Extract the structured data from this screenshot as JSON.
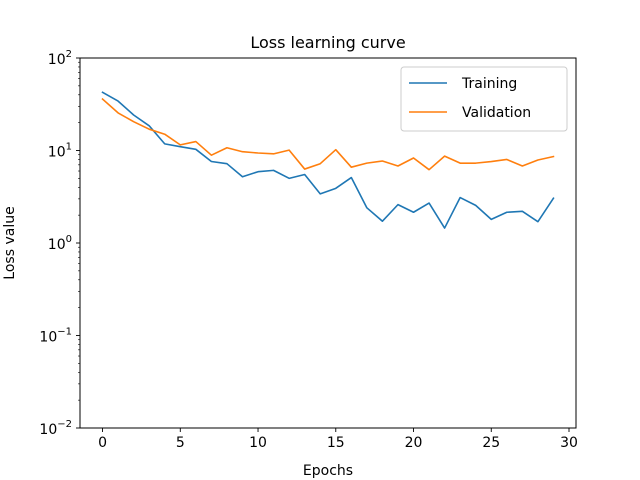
{
  "chart_data": {
    "type": "line",
    "title": "Loss learning curve",
    "xlabel": "Epochs",
    "ylabel": "Loss value",
    "xlim": [
      -1.45,
      30.45
    ],
    "ylim": [
      0.01,
      100
    ],
    "yscale": "log",
    "grid": false,
    "legend_position": "top-right",
    "x_ticks": [
      {
        "value": 0,
        "label": "0"
      },
      {
        "value": 5,
        "label": "5"
      },
      {
        "value": 10,
        "label": "10"
      },
      {
        "value": 15,
        "label": "15"
      },
      {
        "value": 20,
        "label": "20"
      },
      {
        "value": 25,
        "label": "25"
      },
      {
        "value": 30,
        "label": "30"
      }
    ],
    "y_ticks": [
      {
        "value": 0.01,
        "base": "10",
        "exp": "−2"
      },
      {
        "value": 0.1,
        "base": "10",
        "exp": "−1"
      },
      {
        "value": 1,
        "base": "10",
        "exp": "0"
      },
      {
        "value": 10,
        "base": "10",
        "exp": "1"
      },
      {
        "value": 100,
        "base": "10",
        "exp": "2"
      }
    ],
    "x": [
      0,
      1,
      2,
      3,
      4,
      5,
      6,
      7,
      8,
      9,
      10,
      11,
      12,
      13,
      14,
      15,
      16,
      17,
      18,
      19,
      20,
      21,
      22,
      23,
      24,
      25,
      26,
      27,
      28,
      29
    ],
    "series": [
      {
        "name": "Training",
        "color": "#1f77b4",
        "values": [
          42.5,
          34.2,
          24.2,
          18.5,
          11.8,
          11.0,
          10.3,
          7.6,
          7.2,
          5.2,
          5.9,
          6.1,
          5.0,
          5.5,
          3.4,
          3.9,
          5.1,
          2.4,
          1.72,
          2.6,
          2.15,
          2.7,
          1.45,
          3.1,
          2.55,
          1.8,
          2.15,
          2.2,
          1.7,
          3.05
        ]
      },
      {
        "name": "Validation",
        "color": "#ff7f0e",
        "values": [
          36.0,
          25.5,
          20.5,
          17.0,
          15.0,
          11.5,
          12.5,
          8.9,
          10.7,
          9.7,
          9.4,
          9.2,
          10.1,
          6.3,
          7.2,
          10.2,
          6.6,
          7.3,
          7.7,
          6.8,
          8.3,
          6.2,
          8.7,
          7.3,
          7.3,
          7.6,
          8.0,
          6.8,
          7.9,
          8.6
        ]
      }
    ]
  }
}
